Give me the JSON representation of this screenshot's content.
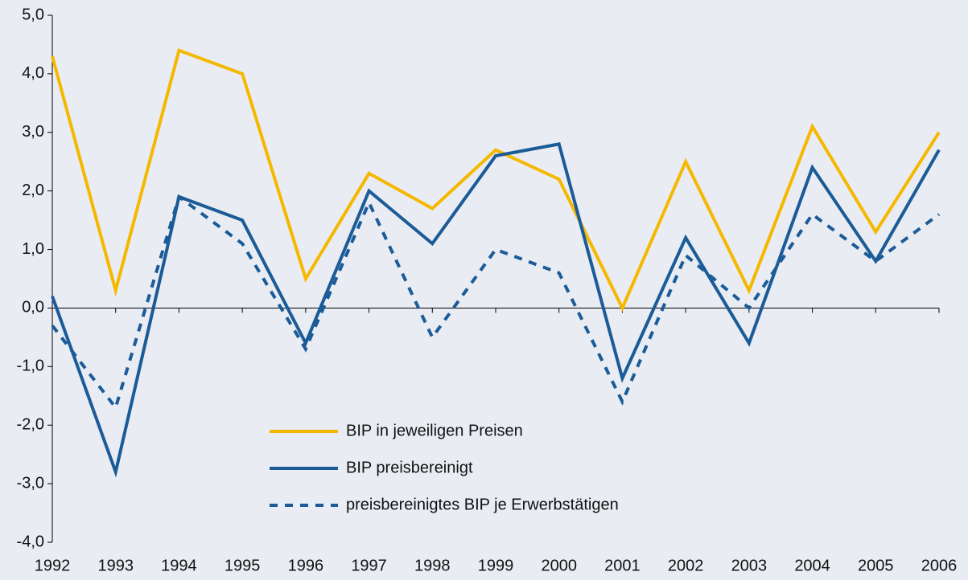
{
  "chart_data": {
    "type": "line",
    "categories": [
      "1992",
      "1993",
      "1994",
      "1995",
      "1996",
      "1997",
      "1998",
      "1999",
      "2000",
      "2001",
      "2002",
      "2003",
      "2004",
      "2005",
      "2006"
    ],
    "series": [
      {
        "name": "BIP in jeweiligen Preisen",
        "color": "#f5b800",
        "line_style": "solid",
        "values": [
          4.3,
          0.3,
          4.4,
          4.0,
          0.5,
          2.3,
          1.7,
          2.7,
          2.2,
          0.0,
          2.5,
          0.3,
          3.1,
          1.3,
          3.0
        ]
      },
      {
        "name": "BIP preisbereinigt",
        "color": "#1b5b97",
        "line_style": "solid",
        "values": [
          0.2,
          -2.8,
          1.9,
          1.5,
          -0.6,
          2.0,
          1.1,
          2.6,
          2.8,
          -1.2,
          1.2,
          -0.6,
          2.4,
          0.8,
          2.7
        ]
      },
      {
        "name": "preisbereinigtes BIP je Erwerbstätigen",
        "color": "#1b5b97",
        "line_style": "dashed",
        "values": [
          -0.3,
          -1.7,
          1.9,
          1.1,
          -0.7,
          1.8,
          -0.5,
          1.0,
          0.6,
          -1.6,
          0.9,
          0.0,
          1.6,
          0.8,
          1.6
        ]
      }
    ],
    "ylim": [
      -4,
      5
    ],
    "yticks": [
      {
        "value": -4,
        "label": "-4,0"
      },
      {
        "value": -3,
        "label": "-3,0"
      },
      {
        "value": -2,
        "label": "-2,0"
      },
      {
        "value": -1,
        "label": "-1,0"
      },
      {
        "value": 0,
        "label": "0,0"
      },
      {
        "value": 1,
        "label": "1,0"
      },
      {
        "value": 2,
        "label": "2,0"
      },
      {
        "value": 3,
        "label": "3,0"
      },
      {
        "value": 4,
        "label": "4,0"
      },
      {
        "value": 5,
        "label": "5,0"
      }
    ],
    "grid": false
  }
}
